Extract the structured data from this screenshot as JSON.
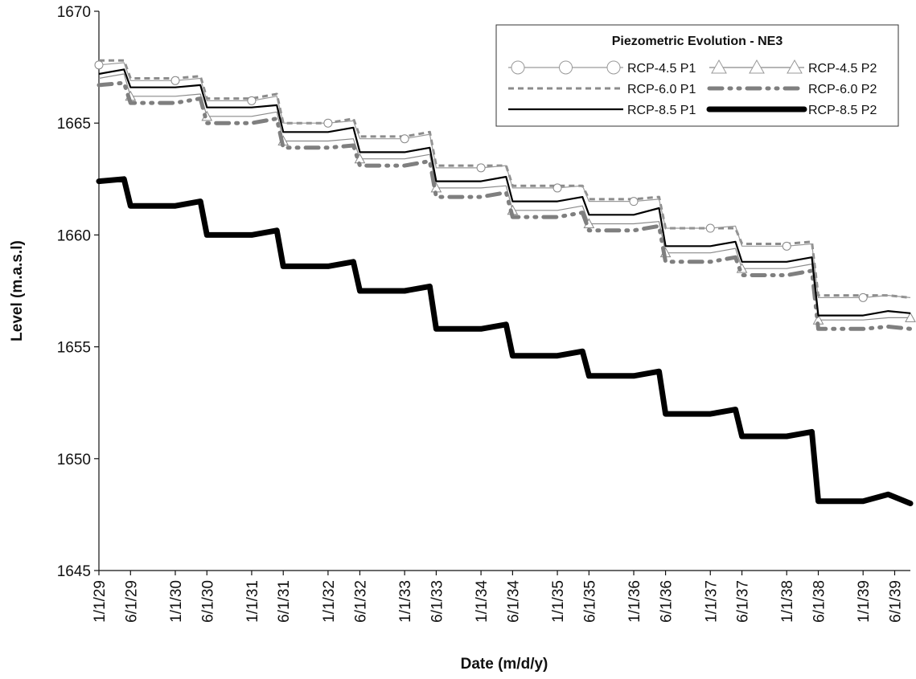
{
  "chart_data": {
    "type": "line",
    "title": "",
    "xlabel": "Date (m/d/y)",
    "ylabel": "Level (m.a.s.l)",
    "ylim": [
      1645,
      1670
    ],
    "yticks": [
      1645,
      1650,
      1655,
      1660,
      1665,
      1670
    ],
    "xlim": [
      "1/1/29",
      "8/15/39"
    ],
    "xticks": [
      "1/1/29",
      "6/1/29",
      "1/1/30",
      "6/1/30",
      "1/1/31",
      "6/1/31",
      "1/1/32",
      "6/1/32",
      "1/1/33",
      "6/1/33",
      "1/1/34",
      "6/1/34",
      "1/1/35",
      "6/1/35",
      "1/1/36",
      "6/1/36",
      "1/1/37",
      "6/1/37",
      "1/1/38",
      "6/1/38",
      "1/1/39",
      "6/1/39"
    ],
    "grid": false,
    "legend": {
      "title": "Piezometric Evolution - NE3",
      "position": "top-right"
    },
    "x": [
      "1/1/29",
      "5/1/29",
      "6/1/29",
      "1/1/30",
      "5/1/30",
      "6/1/30",
      "1/1/31",
      "5/1/31",
      "6/1/31",
      "1/1/32",
      "5/1/32",
      "6/1/32",
      "1/1/33",
      "5/1/33",
      "6/1/33",
      "1/1/34",
      "5/1/34",
      "6/1/34",
      "1/1/35",
      "5/1/35",
      "6/1/35",
      "1/1/36",
      "5/1/36",
      "6/1/36",
      "1/1/37",
      "5/1/37",
      "6/1/37",
      "1/1/38",
      "5/1/38",
      "6/1/38",
      "1/1/39",
      "5/1/39",
      "8/15/39"
    ],
    "series": [
      {
        "name": "RCP-4.5 P1",
        "color": "#9a9a9a",
        "values": [
          1667.6,
          1667.7,
          1666.9,
          1666.9,
          1667.0,
          1666.0,
          1666.0,
          1666.2,
          1665.0,
          1665.0,
          1665.1,
          1664.3,
          1664.3,
          1664.5,
          1663.0,
          1663.0,
          1663.1,
          1662.1,
          1662.1,
          1662.2,
          1661.5,
          1661.5,
          1661.6,
          1660.3,
          1660.3,
          1660.4,
          1659.5,
          1659.5,
          1659.6,
          1657.2,
          1657.2,
          1657.3,
          1657.2
        ]
      },
      {
        "name": "RCP-4.5 P2",
        "color": "#8a8a8a",
        "values": [
          1667.0,
          1667.2,
          1666.2,
          1666.2,
          1666.3,
          1665.3,
          1665.3,
          1665.5,
          1664.2,
          1664.2,
          1664.3,
          1663.4,
          1663.4,
          1663.6,
          1662.1,
          1662.1,
          1662.2,
          1661.1,
          1661.1,
          1661.3,
          1660.5,
          1660.5,
          1660.6,
          1659.2,
          1659.2,
          1659.4,
          1658.5,
          1658.5,
          1658.7,
          1656.2,
          1656.2,
          1656.3,
          1656.3
        ]
      },
      {
        "name": "RCP-6.0 P1",
        "color": "#8c8c8c",
        "values": [
          1667.8,
          1667.8,
          1667.0,
          1667.0,
          1667.1,
          1666.1,
          1666.1,
          1666.3,
          1665.0,
          1665.0,
          1665.2,
          1664.4,
          1664.4,
          1664.6,
          1663.1,
          1663.1,
          1663.1,
          1662.2,
          1662.2,
          1662.2,
          1661.6,
          1661.6,
          1661.7,
          1660.3,
          1660.3,
          1660.3,
          1659.6,
          1659.6,
          1659.7,
          1657.3,
          1657.3,
          1657.3,
          1657.2
        ]
      },
      {
        "name": "RCP-6.0 P2",
        "color": "#7f7f7f",
        "values": [
          1666.7,
          1666.8,
          1665.9,
          1665.9,
          1666.1,
          1665.0,
          1665.0,
          1665.2,
          1663.9,
          1663.9,
          1664.0,
          1663.1,
          1663.1,
          1663.3,
          1661.7,
          1661.7,
          1661.9,
          1660.8,
          1660.8,
          1661.0,
          1660.2,
          1660.2,
          1660.4,
          1658.8,
          1658.8,
          1659.0,
          1658.2,
          1658.2,
          1658.4,
          1655.8,
          1655.8,
          1655.9,
          1655.8
        ]
      },
      {
        "name": "RCP-8.5 P1",
        "color": "#000000",
        "values": [
          1667.2,
          1667.4,
          1666.6,
          1666.6,
          1666.7,
          1665.7,
          1665.7,
          1665.8,
          1664.6,
          1664.6,
          1664.8,
          1663.7,
          1663.7,
          1663.9,
          1662.4,
          1662.4,
          1662.6,
          1661.5,
          1661.5,
          1661.7,
          1660.9,
          1660.9,
          1661.2,
          1659.5,
          1659.5,
          1659.7,
          1658.8,
          1658.8,
          1659.0,
          1656.4,
          1656.4,
          1656.6,
          1656.5
        ]
      },
      {
        "name": "RCP-8.5 P2",
        "color": "#000000",
        "values": [
          1662.4,
          1662.5,
          1661.3,
          1661.3,
          1661.5,
          1660.0,
          1660.0,
          1660.2,
          1658.6,
          1658.6,
          1658.8,
          1657.5,
          1657.5,
          1657.7,
          1655.8,
          1655.8,
          1656.0,
          1654.6,
          1654.6,
          1654.8,
          1653.7,
          1653.7,
          1653.9,
          1652.0,
          1652.0,
          1652.2,
          1651.0,
          1651.0,
          1651.2,
          1648.1,
          1648.1,
          1648.4,
          1648.0
        ]
      }
    ]
  }
}
